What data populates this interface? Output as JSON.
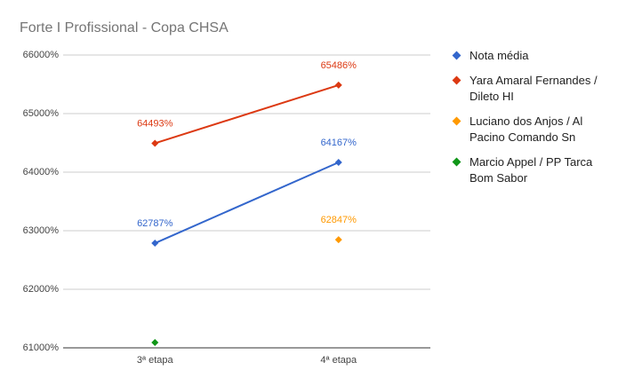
{
  "chart_data": {
    "type": "line",
    "title": "Forte I Profissional - Copa CHSA",
    "categories": [
      "3ª etapa",
      "4ª etapa"
    ],
    "series": [
      {
        "name": "Nota média",
        "color": "#3366cc",
        "values": [
          62787,
          64167
        ],
        "value_labels": [
          "62787%",
          "64167%"
        ]
      },
      {
        "name": "Yara Amaral Fernandes / Dileto HI",
        "color": "#dc3912",
        "values": [
          64493,
          65486
        ],
        "value_labels": [
          "64493%",
          "65486%"
        ]
      },
      {
        "name": "Luciano dos Anjos / Al Pacino Comando Sn",
        "color": "#ff9900",
        "values": [
          null,
          62847
        ],
        "value_labels": [
          null,
          "62847%"
        ]
      },
      {
        "name": "Marcio Appel / PP Tarca Bom Sabor",
        "color": "#109618",
        "values": [
          61090,
          null
        ]
      }
    ],
    "ylim": [
      61000,
      66000
    ],
    "yticks": [
      {
        "value": 61000,
        "label": "61000%"
      },
      {
        "value": 62000,
        "label": "62000%"
      },
      {
        "value": 63000,
        "label": "63000%"
      },
      {
        "value": 64000,
        "label": "64000%"
      },
      {
        "value": 65000,
        "label": "65000%"
      },
      {
        "value": 66000,
        "label": "66000%"
      }
    ],
    "grid": true,
    "legend": "right"
  }
}
